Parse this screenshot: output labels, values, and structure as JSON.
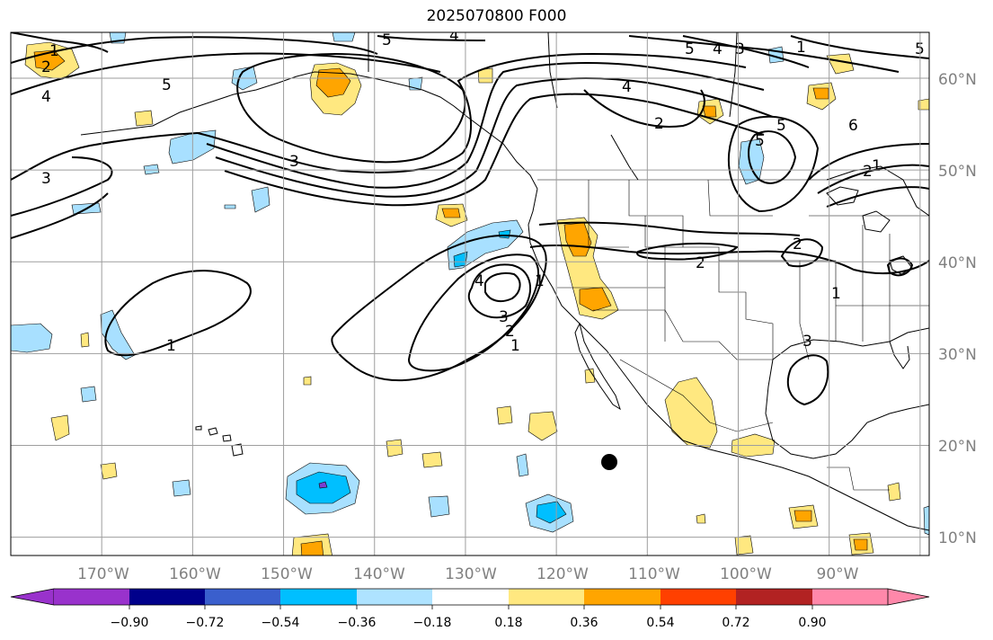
{
  "title": "2025070800 F000",
  "map": {
    "lon_range": [
      -180,
      -79
    ],
    "lat_range": [
      8,
      65
    ],
    "longitude_labels": [
      "170°W",
      "160°W",
      "150°W",
      "140°W",
      "130°W",
      "120°W",
      "110°W",
      "100°W",
      "90°W"
    ],
    "latitude_labels": [
      "60°N",
      "50°N",
      "40°N",
      "30°N",
      "20°N",
      "10°N"
    ],
    "contour_labels": [
      "1",
      "2",
      "4",
      "3",
      "5",
      "4",
      "3",
      "5",
      "4",
      "3",
      "2",
      "1",
      "4",
      "3",
      "2",
      "1",
      "5",
      "6",
      "2",
      "2",
      "5",
      "4",
      "5",
      "5",
      "3",
      "2",
      "1",
      "1",
      "1",
      "1"
    ],
    "marker": "black-dot",
    "colors": {
      "contour": "#000000",
      "grid": "#9e9e9e",
      "land_outline": "#000000",
      "positive_light": "#ffe880",
      "positive_mid": "#ffa500",
      "negative_light": "#a8e0ff",
      "negative_mid": "#00bfff",
      "negative_dark": "#7a3fd0"
    }
  },
  "colorbar": {
    "ticks": [
      "−0.90",
      "−0.72",
      "−0.54",
      "−0.36",
      "−0.18",
      "0.18",
      "0.36",
      "0.54",
      "0.72",
      "0.90"
    ],
    "colors": [
      "#9932cc",
      "#00008b",
      "#3a5fcd",
      "#00bfff",
      "#aee3ff",
      "#ffffff",
      "#ffe880",
      "#ffa500",
      "#ff4000",
      "#b22222",
      "#ff88aa"
    ]
  }
}
